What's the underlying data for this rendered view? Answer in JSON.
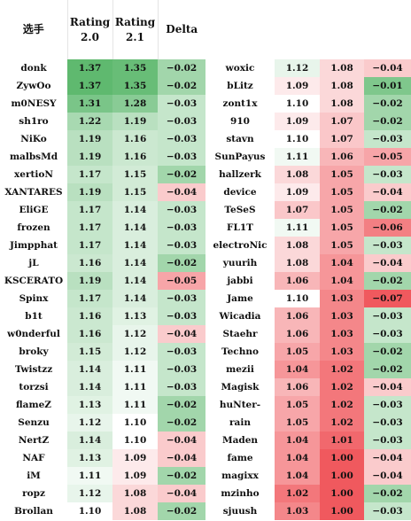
{
  "headers": {
    "player": "选手",
    "rating20_line1": "Rating",
    "rating20_line2": "2.0",
    "rating21_line1": "Rating",
    "rating21_line2": "2.1",
    "delta": "Delta"
  },
  "left_rows": [
    {
      "name": "donk",
      "r20": "1.37",
      "r21": "1.35",
      "delta": "−0.02"
    },
    {
      "name": "ZywOo",
      "r20": "1.37",
      "r21": "1.35",
      "delta": "−0.02"
    },
    {
      "name": "m0NESY",
      "r20": "1.31",
      "r21": "1.28",
      "delta": "−0.03"
    },
    {
      "name": "sh1ro",
      "r20": "1.22",
      "r21": "1.19",
      "delta": "−0.03"
    },
    {
      "name": "NiKo",
      "r20": "1.19",
      "r21": "1.16",
      "delta": "−0.03"
    },
    {
      "name": "malbsMd",
      "r20": "1.19",
      "r21": "1.16",
      "delta": "−0.03"
    },
    {
      "name": "xertioN",
      "r20": "1.17",
      "r21": "1.15",
      "delta": "−0.02"
    },
    {
      "name": "XANTARES",
      "r20": "1.19",
      "r21": "1.15",
      "delta": "−0.04"
    },
    {
      "name": "EliGE",
      "r20": "1.17",
      "r21": "1.14",
      "delta": "−0.03"
    },
    {
      "name": "frozen",
      "r20": "1.17",
      "r21": "1.14",
      "delta": "−0.03"
    },
    {
      "name": "Jimpphat",
      "r20": "1.17",
      "r21": "1.14",
      "delta": "−0.03"
    },
    {
      "name": "jL",
      "r20": "1.16",
      "r21": "1.14",
      "delta": "−0.02"
    },
    {
      "name": "KSCERATO",
      "r20": "1.19",
      "r21": "1.14",
      "delta": "−0.05"
    },
    {
      "name": "Spinx",
      "r20": "1.17",
      "r21": "1.14",
      "delta": "−0.03"
    },
    {
      "name": "b1t",
      "r20": "1.16",
      "r21": "1.13",
      "delta": "−0.03"
    },
    {
      "name": "w0nderful",
      "r20": "1.16",
      "r21": "1.12",
      "delta": "−0.04"
    },
    {
      "name": "broky",
      "r20": "1.15",
      "r21": "1.12",
      "delta": "−0.03"
    },
    {
      "name": "Twistzz",
      "r20": "1.14",
      "r21": "1.11",
      "delta": "−0.03"
    },
    {
      "name": "torzsi",
      "r20": "1.14",
      "r21": "1.11",
      "delta": "−0.03"
    },
    {
      "name": "flameZ",
      "r20": "1.13",
      "r21": "1.11",
      "delta": "−0.02"
    },
    {
      "name": "Senzu",
      "r20": "1.12",
      "r21": "1.10",
      "delta": "−0.02"
    },
    {
      "name": "NertZ",
      "r20": "1.14",
      "r21": "1.10",
      "delta": "−0.04"
    },
    {
      "name": "NAF",
      "r20": "1.13",
      "r21": "1.09",
      "delta": "−0.04"
    },
    {
      "name": "iM",
      "r20": "1.11",
      "r21": "1.09",
      "delta": "−0.02"
    },
    {
      "name": "ropz",
      "r20": "1.12",
      "r21": "1.08",
      "delta": "−0.04"
    },
    {
      "name": "Brollan",
      "r20": "1.10",
      "r21": "1.08",
      "delta": "−0.02"
    }
  ],
  "right_rows": [
    {
      "name": "woxic",
      "r20": "1.12",
      "r21": "1.08",
      "delta": "−0.04"
    },
    {
      "name": "bLitz",
      "r20": "1.09",
      "r21": "1.08",
      "delta": "−0.01"
    },
    {
      "name": "zont1x",
      "r20": "1.10",
      "r21": "1.08",
      "delta": "−0.02"
    },
    {
      "name": "910",
      "r20": "1.09",
      "r21": "1.07",
      "delta": "−0.02"
    },
    {
      "name": "stavn",
      "r20": "1.10",
      "r21": "1.07",
      "delta": "−0.03"
    },
    {
      "name": "SunPayus",
      "r20": "1.11",
      "r21": "1.06",
      "delta": "−0.05"
    },
    {
      "name": "hallzerk",
      "r20": "1.08",
      "r21": "1.05",
      "delta": "−0.03"
    },
    {
      "name": "device",
      "r20": "1.09",
      "r21": "1.05",
      "delta": "−0.04"
    },
    {
      "name": "TeSeS",
      "r20": "1.07",
      "r21": "1.05",
      "delta": "−0.02"
    },
    {
      "name": "FL1T",
      "r20": "1.11",
      "r21": "1.05",
      "delta": "−0.06"
    },
    {
      "name": "electroNic",
      "r20": "1.08",
      "r21": "1.05",
      "delta": "−0.03"
    },
    {
      "name": "yuurih",
      "r20": "1.08",
      "r21": "1.04",
      "delta": "−0.04"
    },
    {
      "name": "jabbi",
      "r20": "1.06",
      "r21": "1.04",
      "delta": "−0.02"
    },
    {
      "name": "Jame",
      "r20": "1.10",
      "r21": "1.03",
      "delta": "−0.07"
    },
    {
      "name": "Wicadia",
      "r20": "1.06",
      "r21": "1.03",
      "delta": "−0.03"
    },
    {
      "name": "Staehr",
      "r20": "1.06",
      "r21": "1.03",
      "delta": "−0.03"
    },
    {
      "name": "Techno",
      "r20": "1.05",
      "r21": "1.03",
      "delta": "−0.02"
    },
    {
      "name": "mezii",
      "r20": "1.04",
      "r21": "1.02",
      "delta": "−0.02"
    },
    {
      "name": "Magisk",
      "r20": "1.06",
      "r21": "1.02",
      "delta": "−0.04"
    },
    {
      "name": "huNter-",
      "r20": "1.05",
      "r21": "1.02",
      "delta": "−0.03"
    },
    {
      "name": "rain",
      "r20": "1.05",
      "r21": "1.02",
      "delta": "−0.03"
    },
    {
      "name": "Maden",
      "r20": "1.04",
      "r21": "1.01",
      "delta": "−0.03"
    },
    {
      "name": "fame",
      "r20": "1.04",
      "r21": "1.00",
      "delta": "−0.04"
    },
    {
      "name": "magixx",
      "r20": "1.04",
      "r21": "1.00",
      "delta": "−0.04"
    },
    {
      "name": "mzinho",
      "r20": "1.02",
      "r21": "1.00",
      "delta": "−0.02"
    },
    {
      "name": "sjuush",
      "r20": "1.03",
      "r21": "1.00",
      "delta": "−0.03"
    }
  ],
  "colors": {
    "high_green": "#5fb96f",
    "neutral": "#ffffff",
    "low_red": "#f0595e",
    "delta_good": "#5fb96f",
    "delta_bad": "#f0595e"
  }
}
